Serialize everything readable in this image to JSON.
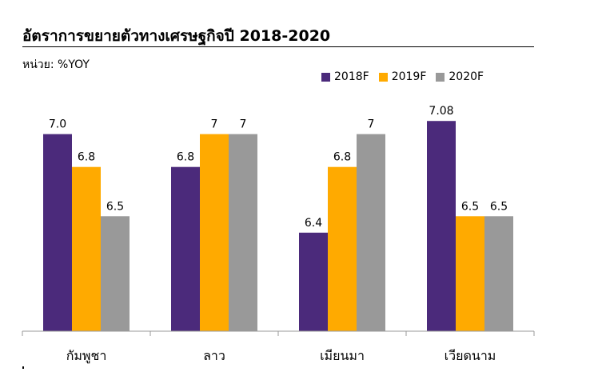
{
  "title": "อัตราการขยายตัวทางเศรษฐกิจปี 2018-2020",
  "unit_label": "หน่วย: %YOY",
  "chart_data": {
    "type": "bar",
    "title": "อัตราการขยายตัวทางเศรษฐกิจปี 2018-2020",
    "ylabel": "หน่วย: %YOY",
    "categories": [
      "กัมพูชา",
      "ลาว",
      "เมียนมา",
      "เวียดนาม"
    ],
    "series": [
      {
        "name": "2018F",
        "color": "#4B2A7B",
        "values": [
          7.0,
          6.8,
          6.4,
          7.08
        ],
        "labels": [
          "7.0",
          "6.8",
          "6.4",
          "7.08"
        ]
      },
      {
        "name": "2019F",
        "color": "#FFAA00",
        "values": [
          6.8,
          7.0,
          6.8,
          6.5
        ],
        "labels": [
          "6.8",
          "7",
          "6.8",
          "6.5"
        ]
      },
      {
        "name": "2020F",
        "color": "#999999",
        "values": [
          6.5,
          7.0,
          7.0,
          6.5
        ],
        "labels": [
          "6.5",
          "7",
          "7",
          "6.5"
        ]
      }
    ],
    "ylim": [
      5.8,
      7.12
    ],
    "grid": false,
    "legend_position": "top-right"
  }
}
